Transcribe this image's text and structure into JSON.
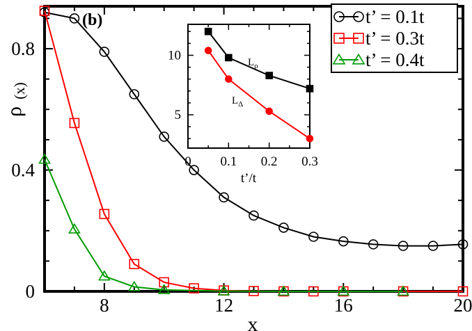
{
  "chart_data": [
    {
      "type": "line",
      "panel_label": "(b)",
      "xlabel": "x",
      "ylabel": "ρ",
      "ylabel_sub": "(x)",
      "xlim": [
        6,
        20
      ],
      "ylim": [
        0,
        0.94
      ],
      "xticks": [
        8,
        12,
        16,
        20
      ],
      "xtick_labels": [
        "8",
        "12",
        "16",
        "20"
      ],
      "yticks": [
        0,
        0.4,
        0.8
      ],
      "ytick_labels": [
        "0",
        "0.4",
        "0.8"
      ],
      "grid": false,
      "legend_position": "top-right",
      "series": [
        {
          "name": "t’ = 0.1t",
          "color": "#000000",
          "marker": "circle",
          "x": [
            6,
            7,
            8,
            9,
            10,
            11,
            12,
            13,
            14,
            15,
            16,
            17,
            18,
            19,
            20
          ],
          "y": [
            0.92,
            0.9,
            0.79,
            0.65,
            0.51,
            0.4,
            0.31,
            0.25,
            0.21,
            0.18,
            0.165,
            0.155,
            0.15,
            0.15,
            0.155
          ]
        },
        {
          "name": "t’ = 0.3t",
          "color": "#ff0000",
          "marker": "square",
          "x": [
            6,
            7,
            8,
            9,
            10,
            11,
            12,
            13,
            14,
            15,
            16,
            18,
            20
          ],
          "y": [
            0.925,
            0.555,
            0.255,
            0.09,
            0.03,
            0.01,
            0.003,
            0.001,
            0.0,
            0.0,
            0.0,
            0.0,
            0.0
          ]
        },
        {
          "name": "t’ = 0.4t",
          "color": "#009900",
          "marker": "triangle",
          "x": [
            6,
            7,
            8,
            9,
            10,
            12,
            14,
            16,
            18
          ],
          "y": [
            0.435,
            0.205,
            0.05,
            0.015,
            0.005,
            0.001,
            0.0,
            0.0,
            0.0
          ]
        }
      ]
    },
    {
      "type": "line",
      "role": "inset",
      "xlabel": "t’/t",
      "xlim": [
        0,
        0.3
      ],
      "ylim": [
        2.2,
        12.6
      ],
      "xticks": [
        0,
        0.1,
        0.2,
        0.3
      ],
      "xtick_labels": [
        "0",
        "0.1",
        "0.2",
        "0.3"
      ],
      "yticks": [
        5,
        10
      ],
      "ytick_labels": [
        "5",
        "10"
      ],
      "series": [
        {
          "name": "L",
          "name_sub": "ρ",
          "color": "#000000",
          "marker": "square",
          "x": [
            0.05,
            0.1,
            0.2,
            0.3
          ],
          "y": [
            12.0,
            9.8,
            8.3,
            7.2
          ]
        },
        {
          "name": "L",
          "name_sub": "Δ",
          "color": "#ff0000",
          "marker": "circle",
          "x": [
            0.05,
            0.1,
            0.2,
            0.3
          ],
          "y": [
            10.4,
            8.0,
            5.3,
            3.0
          ]
        }
      ]
    }
  ]
}
